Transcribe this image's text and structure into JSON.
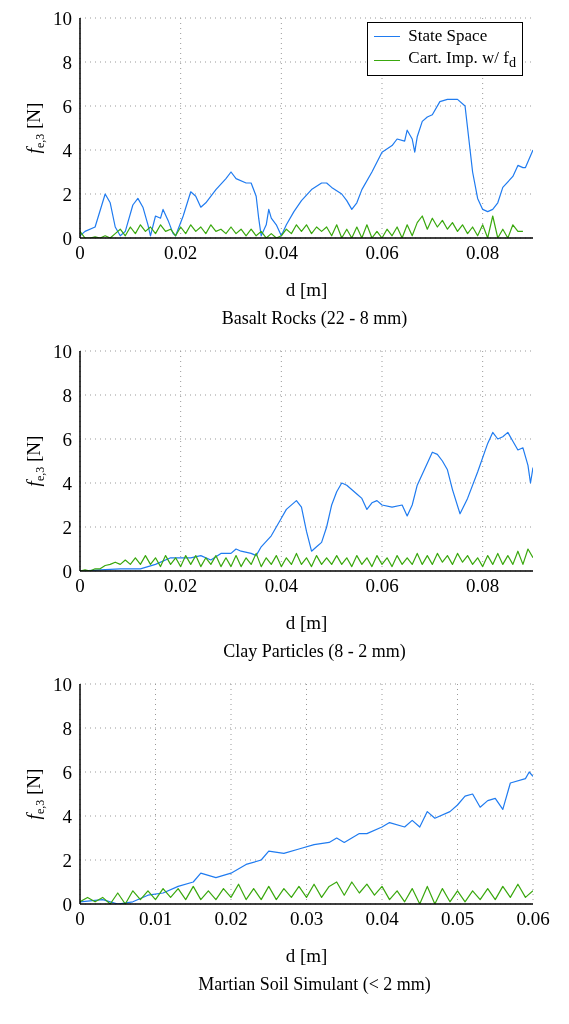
{
  "chart_data": [
    {
      "type": "line",
      "title": "Basalt Rocks (22 - 8 mm)",
      "xlabel": "d [m]",
      "ylabel": "f$_{e,3}$  [N]",
      "xlim": [
        0,
        0.09
      ],
      "ylim": [
        0,
        10
      ],
      "xticks": [
        0,
        0.02,
        0.04,
        0.06,
        0.08
      ],
      "yticks": [
        0,
        2,
        4,
        6,
        8,
        10
      ],
      "grid": true,
      "legend": "top right",
      "series": [
        {
          "name": "State Space",
          "color": "#1f7bf0",
          "x": [
            0,
            0.001,
            0.003,
            0.005,
            0.006,
            0.007,
            0.008,
            0.009,
            0.0105,
            0.0115,
            0.0125,
            0.0135,
            0.014,
            0.015,
            0.016,
            0.0165,
            0.0175,
            0.0185,
            0.019,
            0.0205,
            0.022,
            0.023,
            0.024,
            0.025,
            0.027,
            0.029,
            0.03,
            0.031,
            0.033,
            0.034,
            0.035,
            0.0355,
            0.036,
            0.037,
            0.0375,
            0.038,
            0.039,
            0.04,
            0.041,
            0.0425,
            0.044,
            0.046,
            0.048,
            0.049,
            0.05,
            0.052,
            0.053,
            0.054,
            0.055,
            0.056,
            0.058,
            0.06,
            0.062,
            0.063,
            0.0645,
            0.065,
            0.066,
            0.0665,
            0.067,
            0.068,
            0.069,
            0.07,
            0.0715,
            0.073,
            0.075,
            0.0765,
            0.077,
            0.078,
            0.079,
            0.08,
            0.081,
            0.082,
            0.083,
            0.084,
            0.086,
            0.087,
            0.088,
            0.0885,
            0.09
          ],
          "values": [
            0.1,
            0.3,
            0.5,
            2.0,
            1.6,
            0.5,
            0.1,
            0.3,
            1.5,
            1.8,
            1.4,
            0.6,
            0.1,
            1.0,
            0.9,
            1.3,
            0.8,
            0.2,
            0.1,
            1.0,
            2.1,
            1.9,
            1.4,
            1.6,
            2.2,
            2.7,
            3.0,
            2.7,
            2.5,
            2.5,
            1.9,
            0.9,
            0.1,
            0.6,
            1.3,
            0.9,
            0.6,
            0.1,
            0.6,
            1.2,
            1.7,
            2.2,
            2.5,
            2.5,
            2.3,
            2.0,
            1.7,
            1.3,
            1.6,
            2.2,
            3.0,
            3.9,
            4.2,
            4.5,
            4.4,
            4.9,
            4.5,
            3.9,
            4.6,
            5.3,
            5.5,
            5.6,
            6.2,
            6.3,
            6.3,
            6.0,
            5.0,
            3.0,
            1.8,
            1.3,
            1.2,
            1.3,
            1.6,
            2.3,
            2.8,
            3.3,
            3.2,
            3.2,
            4.0
          ]
        },
        {
          "name": "Cart. Imp. w/ f$_{d}$",
          "color": "#3aa80e",
          "x": [
            0,
            0.001,
            0.002,
            0.003,
            0.004,
            0.005,
            0.006,
            0.007,
            0.008,
            0.009,
            0.01,
            0.011,
            0.012,
            0.013,
            0.014,
            0.015,
            0.016,
            0.017,
            0.018,
            0.019,
            0.02,
            0.021,
            0.022,
            0.023,
            0.024,
            0.025,
            0.026,
            0.027,
            0.028,
            0.029,
            0.03,
            0.031,
            0.032,
            0.033,
            0.034,
            0.035,
            0.036,
            0.037,
            0.038,
            0.039,
            0.04,
            0.041,
            0.042,
            0.043,
            0.044,
            0.045,
            0.046,
            0.047,
            0.048,
            0.049,
            0.05,
            0.051,
            0.052,
            0.053,
            0.054,
            0.055,
            0.056,
            0.057,
            0.058,
            0.059,
            0.06,
            0.061,
            0.062,
            0.063,
            0.064,
            0.065,
            0.066,
            0.067,
            0.068,
            0.069,
            0.07,
            0.071,
            0.072,
            0.073,
            0.074,
            0.075,
            0.076,
            0.077,
            0.078,
            0.079,
            0.08,
            0.081,
            0.082,
            0.083,
            0.084,
            0.085,
            0.086,
            0.087,
            0.088
          ],
          "values": [
            0.3,
            0.0,
            0.0,
            0.05,
            0.0,
            0.1,
            0.0,
            0.2,
            0.4,
            0.1,
            0.5,
            0.2,
            0.6,
            0.3,
            0.5,
            0.2,
            0.6,
            0.3,
            0.4,
            0.1,
            0.5,
            0.2,
            0.6,
            0.3,
            0.5,
            0.2,
            0.6,
            0.3,
            0.4,
            0.2,
            0.5,
            0.2,
            0.4,
            0.1,
            0.4,
            0.1,
            0.3,
            0.0,
            0.2,
            0.0,
            0.1,
            0.4,
            0.2,
            0.6,
            0.3,
            0.6,
            0.2,
            0.5,
            0.3,
            0.5,
            0.1,
            0.6,
            0.0,
            0.4,
            0.0,
            0.5,
            0.0,
            0.6,
            0.0,
            0.3,
            0.0,
            0.4,
            0.1,
            0.5,
            0.0,
            0.6,
            0.1,
            0.7,
            1.0,
            0.4,
            0.9,
            0.5,
            0.8,
            0.4,
            0.7,
            0.3,
            0.6,
            0.2,
            0.5,
            0.1,
            0.6,
            0.0,
            1.0,
            0.0,
            0.4,
            0.0,
            0.6,
            0.3,
            0.3
          ]
        }
      ]
    },
    {
      "type": "line",
      "title": "Clay Particles (8 - 2 mm)",
      "xlabel": "d [m]",
      "ylabel": "f$_{e,3}$  [N]",
      "xlim": [
        0,
        0.09
      ],
      "ylim": [
        0,
        10
      ],
      "xticks": [
        0,
        0.02,
        0.04,
        0.06,
        0.08
      ],
      "yticks": [
        0,
        2,
        4,
        6,
        8,
        10
      ],
      "grid": true,
      "series": [
        {
          "color": "#1f7bf0",
          "x": [
            0,
            0.004,
            0.008,
            0.012,
            0.015,
            0.018,
            0.02,
            0.022,
            0.024,
            0.026,
            0.028,
            0.03,
            0.031,
            0.032,
            0.034,
            0.035,
            0.036,
            0.038,
            0.04,
            0.041,
            0.043,
            0.044,
            0.045,
            0.046,
            0.047,
            0.048,
            0.049,
            0.05,
            0.051,
            0.052,
            0.053,
            0.055,
            0.056,
            0.057,
            0.058,
            0.059,
            0.06,
            0.062,
            0.064,
            0.065,
            0.066,
            0.067,
            0.069,
            0.07,
            0.071,
            0.072,
            0.073,
            0.074,
            0.0755,
            0.077,
            0.079,
            0.081,
            0.082,
            0.083,
            0.084,
            0.085,
            0.086,
            0.087,
            0.088,
            0.089,
            0.0895,
            0.09
          ],
          "values": [
            0,
            0.05,
            0.1,
            0.1,
            0.3,
            0.6,
            0.6,
            0.6,
            0.7,
            0.5,
            0.8,
            0.8,
            1.0,
            0.9,
            0.8,
            0.7,
            1.1,
            1.6,
            2.4,
            2.8,
            3.2,
            2.9,
            1.8,
            0.9,
            1.1,
            1.3,
            2.0,
            3.0,
            3.6,
            4.0,
            3.9,
            3.5,
            3.3,
            2.8,
            3.1,
            3.2,
            3.0,
            2.9,
            3.0,
            2.5,
            3.0,
            3.9,
            4.9,
            5.4,
            5.3,
            5.0,
            4.6,
            3.7,
            2.6,
            3.3,
            4.5,
            5.8,
            6.3,
            6.0,
            6.1,
            6.3,
            5.9,
            5.5,
            5.6,
            4.8,
            4.0,
            4.7
          ]
        },
        {
          "color": "#3aa80e",
          "x": [
            0,
            0.001,
            0.002,
            0.003,
            0.004,
            0.005,
            0.006,
            0.007,
            0.008,
            0.009,
            0.01,
            0.011,
            0.012,
            0.013,
            0.014,
            0.015,
            0.016,
            0.017,
            0.018,
            0.019,
            0.02,
            0.021,
            0.022,
            0.023,
            0.024,
            0.025,
            0.026,
            0.027,
            0.028,
            0.029,
            0.03,
            0.031,
            0.032,
            0.033,
            0.034,
            0.035,
            0.036,
            0.037,
            0.038,
            0.039,
            0.04,
            0.041,
            0.042,
            0.043,
            0.044,
            0.045,
            0.046,
            0.047,
            0.048,
            0.049,
            0.05,
            0.051,
            0.052,
            0.053,
            0.054,
            0.055,
            0.056,
            0.057,
            0.058,
            0.059,
            0.06,
            0.061,
            0.062,
            0.063,
            0.064,
            0.065,
            0.066,
            0.067,
            0.068,
            0.069,
            0.07,
            0.071,
            0.072,
            0.073,
            0.074,
            0.075,
            0.076,
            0.077,
            0.078,
            0.079,
            0.08,
            0.081,
            0.082,
            0.083,
            0.084,
            0.085,
            0.086,
            0.087,
            0.088,
            0.089,
            0.09
          ],
          "values": [
            0.0,
            0.05,
            0.0,
            0.1,
            0.1,
            0.25,
            0.3,
            0.4,
            0.3,
            0.5,
            0.3,
            0.6,
            0.3,
            0.7,
            0.3,
            0.6,
            0.2,
            0.7,
            0.3,
            0.6,
            0.2,
            0.7,
            0.3,
            0.7,
            0.2,
            0.6,
            0.3,
            0.7,
            0.2,
            0.6,
            0.2,
            0.7,
            0.2,
            0.6,
            0.3,
            0.8,
            0.2,
            0.6,
            0.3,
            0.7,
            0.2,
            0.6,
            0.3,
            0.8,
            0.3,
            0.6,
            0.2,
            0.7,
            0.3,
            0.6,
            0.3,
            0.7,
            0.3,
            0.6,
            0.2,
            0.7,
            0.3,
            0.6,
            0.2,
            0.7,
            0.3,
            0.6,
            0.2,
            0.7,
            0.3,
            0.6,
            0.3,
            0.8,
            0.3,
            0.7,
            0.3,
            0.8,
            0.4,
            0.7,
            0.3,
            0.8,
            0.4,
            0.7,
            0.3,
            0.6,
            0.2,
            0.7,
            0.3,
            0.8,
            0.3,
            0.7,
            0.3,
            0.9,
            0.3,
            1.0,
            0.6
          ]
        }
      ]
    },
    {
      "type": "line",
      "title": "Martian Soil Simulant (< 2 mm)",
      "xlabel": "d [m]",
      "ylabel": "f$_{e,3}$  [N]",
      "xlim": [
        0,
        0.06
      ],
      "ylim": [
        0,
        10
      ],
      "xticks": [
        0,
        0.01,
        0.02,
        0.03,
        0.04,
        0.05,
        0.06
      ],
      "yticks": [
        0,
        2,
        4,
        6,
        8,
        10
      ],
      "grid": true,
      "series": [
        {
          "color": "#1f7bf0",
          "x": [
            0,
            0.003,
            0.005,
            0.007,
            0.009,
            0.011,
            0.013,
            0.015,
            0.016,
            0.018,
            0.02,
            0.022,
            0.024,
            0.025,
            0.027,
            0.029,
            0.031,
            0.033,
            0.034,
            0.035,
            0.037,
            0.038,
            0.04,
            0.041,
            0.043,
            0.044,
            0.045,
            0.046,
            0.047,
            0.049,
            0.05,
            0.051,
            0.052,
            0.053,
            0.054,
            0.055,
            0.056,
            0.057,
            0.059,
            0.0595,
            0.06
          ],
          "values": [
            0.1,
            0.2,
            0.0,
            0.1,
            0.4,
            0.5,
            0.8,
            1.0,
            1.4,
            1.2,
            1.4,
            1.8,
            2.0,
            2.4,
            2.3,
            2.5,
            2.7,
            2.8,
            3.0,
            2.8,
            3.2,
            3.2,
            3.5,
            3.7,
            3.5,
            3.8,
            3.5,
            4.2,
            3.9,
            4.2,
            4.5,
            4.9,
            5.0,
            4.4,
            4.7,
            4.8,
            4.3,
            5.5,
            5.7,
            6.0,
            5.8
          ]
        },
        {
          "color": "#3aa80e",
          "x": [
            0,
            0.001,
            0.002,
            0.003,
            0.004,
            0.005,
            0.006,
            0.007,
            0.008,
            0.009,
            0.01,
            0.011,
            0.012,
            0.013,
            0.014,
            0.015,
            0.016,
            0.017,
            0.018,
            0.019,
            0.02,
            0.021,
            0.022,
            0.023,
            0.024,
            0.025,
            0.026,
            0.027,
            0.028,
            0.029,
            0.03,
            0.031,
            0.032,
            0.033,
            0.034,
            0.035,
            0.036,
            0.037,
            0.038,
            0.039,
            0.04,
            0.041,
            0.042,
            0.043,
            0.044,
            0.045,
            0.046,
            0.047,
            0.048,
            0.049,
            0.05,
            0.051,
            0.052,
            0.053,
            0.054,
            0.055,
            0.056,
            0.057,
            0.058,
            0.059,
            0.06
          ],
          "values": [
            0.1,
            0.3,
            0.1,
            0.3,
            0.0,
            0.5,
            0.0,
            0.6,
            0.2,
            0.6,
            0.2,
            0.7,
            0.3,
            0.7,
            0.2,
            0.8,
            0.2,
            0.6,
            0.2,
            0.7,
            0.3,
            0.9,
            0.2,
            0.7,
            0.2,
            0.8,
            0.2,
            0.7,
            0.3,
            0.8,
            0.3,
            0.9,
            0.3,
            0.8,
            1.0,
            0.4,
            1.0,
            0.5,
            0.9,
            0.4,
            0.8,
            0.2,
            0.6,
            0.1,
            0.7,
            0.0,
            0.8,
            0.0,
            0.7,
            0.1,
            0.6,
            0.1,
            0.6,
            0.2,
            0.7,
            0.2,
            0.8,
            0.3,
            0.9,
            0.3,
            0.6
          ]
        }
      ]
    }
  ]
}
